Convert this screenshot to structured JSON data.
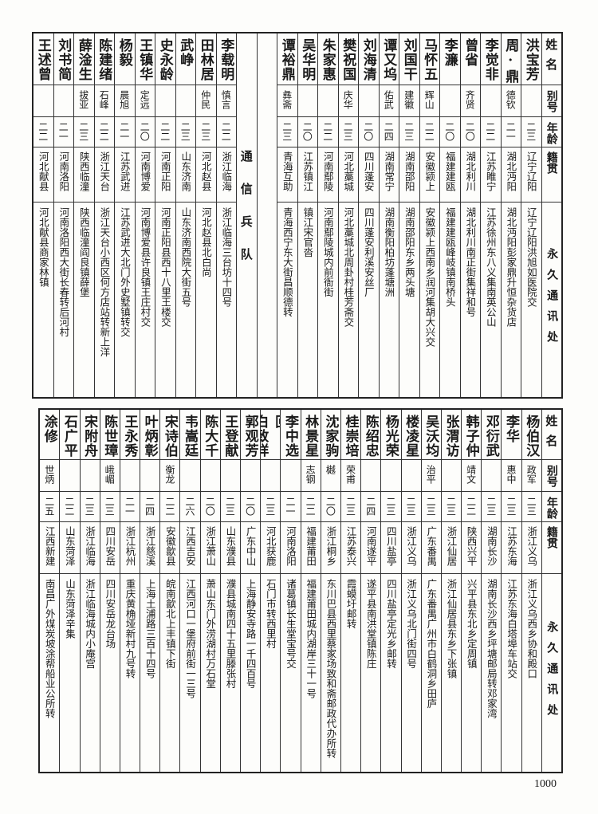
{
  "header": {
    "name": "姓名",
    "alias": "别号",
    "age": "年龄",
    "origin": "籍贯",
    "address": "永久通讯处"
  },
  "top_section": {
    "rows_right": [
      {
        "name": "洪宝芳",
        "alias": "",
        "age": "二三",
        "origin": "辽宁辽阳",
        "address": "辽宁辽阳洪旭如医院交"
      },
      {
        "name": "周·鼎",
        "alias": "德钦",
        "age": "二一",
        "origin": "湖北沔阳",
        "address": "湖北沔阳彭家鼎升恒杂货店"
      },
      {
        "name": "李觉非",
        "alias": "",
        "age": "二二",
        "origin": "江苏睢宁",
        "address": "江苏徐州东八义集南英公山"
      },
      {
        "name": "曾省",
        "alias": "齐贤",
        "age": "二〇",
        "origin": "湖北利川",
        "address": "湖北利川南正街集祥和号"
      },
      {
        "name": "李濂",
        "alias": "",
        "age": "二〇",
        "origin": "福建建瓯",
        "address": "福建建瓯峰岐镇南桥头"
      },
      {
        "name": "马怀五",
        "alias": "辉山",
        "age": "二二",
        "origin": "安徽颍上",
        "address": "安徽颍上西南乡润河集胡大兴交"
      },
      {
        "name": "刘国干",
        "alias": "建徽",
        "age": "二三",
        "origin": "湖南邵阳",
        "address": "湖南邵阳东乡两头塘"
      },
      {
        "name": "谭又坞",
        "alias": "佑武",
        "age": "二四",
        "origin": "湖南常宁",
        "address": "湖南衡阳柏坊蓬塘洲"
      },
      {
        "name": "刘海清",
        "alias": "",
        "age": "二〇",
        "origin": "四川蓬安",
        "address": "四川蓬安利溪安丝厂"
      },
      {
        "name": "樊祝国",
        "alias": "庆华",
        "age": "二三",
        "origin": "河北藁城",
        "address": "河北藁城北周卦村桂芳斋交"
      },
      {
        "name": "朱家惠",
        "alias": "",
        "age": "二二",
        "origin": "河南鄢陵",
        "address": "河南鄢陵城内前衙街"
      },
      {
        "name": "吴华明",
        "alias": "",
        "age": "二〇",
        "origin": "江苏镇江",
        "address": "镇江宋官沓"
      },
      {
        "name": "谭裕鼎",
        "alias": "彝斋",
        "age": "二三",
        "origin": "青海互助",
        "address": "青海西宁东大街昌顺德转"
      }
    ],
    "section_label": "通信兵队",
    "rows_left": [
      {
        "name": "李载明",
        "alias": "慎言",
        "age": "二二",
        "origin": "浙江临海",
        "address": "浙江临海三台坊十四号"
      },
      {
        "name": "田林居",
        "alias": "仲民",
        "age": "二三",
        "origin": "河北赵县",
        "address": "河北赵县北白尚"
      },
      {
        "name": "武峥",
        "alias": "",
        "age": "二三",
        "origin": "山东济南",
        "address": "山东济南西院大街五号"
      },
      {
        "name": "史永龄",
        "alias": "",
        "age": "二二",
        "origin": "河南正阳",
        "address": "河南正阳县西十八里王楼交"
      },
      {
        "name": "王镇华",
        "alias": "定远",
        "age": "二〇",
        "origin": "河南博爱",
        "address": "河南博爱县许良镇王庄村交"
      },
      {
        "name": "杨毅",
        "alias": "晨旭",
        "age": "二一",
        "origin": "江苏武进",
        "address": "江苏武进大北门外史墅镇转交"
      },
      {
        "name": "陈建绪",
        "alias": "石峰",
        "age": "二二",
        "origin": "浙江天台",
        "address": "浙江天台小西区何方店站转新上洋"
      },
      {
        "name": "薛淦生",
        "alias": "拔亚",
        "age": "二三",
        "origin": "陕西临潼",
        "address": "陕西临潼阎良镇薛堡"
      },
      {
        "name": "刘书简",
        "alias": "",
        "age": "二一",
        "origin": "河南洛阳",
        "address": "河南洛阳西大街长春转后河村"
      },
      {
        "name": "王述曾",
        "alias": "",
        "age": "二二",
        "origin": "河北献县",
        "address": "河北献县商家林镇"
      }
    ]
  },
  "bottom_section": {
    "rows": [
      {
        "name": "杨伯汉",
        "alias": "政军",
        "age": "二三",
        "origin": "浙江义乌",
        "address": "浙江义乌西乡协和殿口"
      },
      {
        "name": "李华",
        "alias": "惠中",
        "age": "二三",
        "origin": "江苏东海",
        "address": "江苏东海白塔埠车站交"
      },
      {
        "name": "邓衍武",
        "alias": "",
        "age": "二三",
        "origin": "湖南长沙",
        "address": "湖南长沙西乡坪塘邮局转邓家湾"
      },
      {
        "name": "韩子仲",
        "alias": "靖文",
        "age": "二二",
        "origin": "陕西兴平",
        "address": "兴平县东北乡定周镇"
      },
      {
        "name": "张渭访",
        "alias": "",
        "age": "二三",
        "origin": "浙江仙居",
        "address": "浙江仙居县东乡下张镇"
      },
      {
        "name": "吴沃均",
        "alias": "治平",
        "age": "二三",
        "origin": "广东番禺",
        "address": "广东番禺广州市白鹤洞乡田庐"
      },
      {
        "name": "楼凌星",
        "alias": "",
        "age": "二三",
        "origin": "浙江义乌",
        "address": "浙江义乌北门街四号"
      },
      {
        "name": "杨光荣",
        "alias": "",
        "age": "二三",
        "origin": "四川盐亭",
        "address": "四川盐亭定光乡邮转"
      },
      {
        "name": "陈绍忠",
        "alias": "",
        "age": "二四",
        "origin": "河南遂平",
        "address": "遂平县南洪堂镇陈庄"
      },
      {
        "name": "桂崇培",
        "alias": "荣甫",
        "age": "二三",
        "origin": "江苏泰兴",
        "address": "霞蟆圩邮转"
      },
      {
        "name": "沈家驹",
        "alias": "樾",
        "age": "二〇",
        "origin": "浙江桐乡",
        "address": "东川巴县西里蔡家场致和斋邮政代办所转"
      },
      {
        "name": "林景星",
        "alias": "志钢",
        "age": "二二",
        "origin": "福建莆田",
        "address": "福建莆田城内湖岸三十一号"
      },
      {
        "name": "李中选",
        "alias": "",
        "age": "二一",
        "origin": "河南洛阳",
        "address": "诸葛镇长生堂宝号交"
      },
      {
        "name": "白致祥",
        "note": "回",
        "alias": "",
        "age": "二三",
        "origin": "河北获鹿",
        "address": "石门市转西里村"
      },
      {
        "name": "郭观芳",
        "alias": "",
        "age": "二〇",
        "origin": "广东中山",
        "address": "上海静安寺路一千四百号"
      },
      {
        "name": "王登献",
        "alias": "",
        "age": "二三",
        "origin": "山东濮县",
        "address": "濮县城南四十五里滕张村"
      },
      {
        "name": "陈大千",
        "alias": "",
        "age": "二〇",
        "origin": "浙江萧山",
        "address": "萧山东门外涝湖村万石堂"
      },
      {
        "name": "韦嵩廷",
        "alias": "",
        "age": "二六",
        "origin": "江西吉安",
        "address": "江西河口一堡府前街一三号"
      },
      {
        "name": "宋诗伯",
        "alias": "衡龙",
        "age": "二二",
        "origin": "安徽歙县",
        "address": "皖南歙北上丰镇下街"
      },
      {
        "name": "叶炳彰",
        "alias": "",
        "age": "二四",
        "origin": "浙江慈溪",
        "address": "上海土浦路三百十四号"
      },
      {
        "name": "王永秀",
        "alias": "",
        "age": "二一",
        "origin": "浙江杭州",
        "address": "重庆黄桷垭新村九号转"
      },
      {
        "name": "陈世璋",
        "alias": "峨嵋",
        "age": "二三",
        "origin": "四川安岳",
        "address": "四川安岳龙台场"
      },
      {
        "name": "宋附舟",
        "alias": "",
        "age": "二三",
        "origin": "浙江临海",
        "address": "浙江临海城内小庵宫"
      },
      {
        "name": "石广平",
        "alias": "",
        "age": "二二",
        "origin": "山东菏泽",
        "address": "山东菏泽辛集"
      },
      {
        "name": "涂修",
        "alias": "世炳",
        "age": "二五",
        "origin": "江西新建",
        "address": "南昌广外煤炭坡涂帮船业公所转"
      }
    ]
  },
  "page_number": "1000"
}
